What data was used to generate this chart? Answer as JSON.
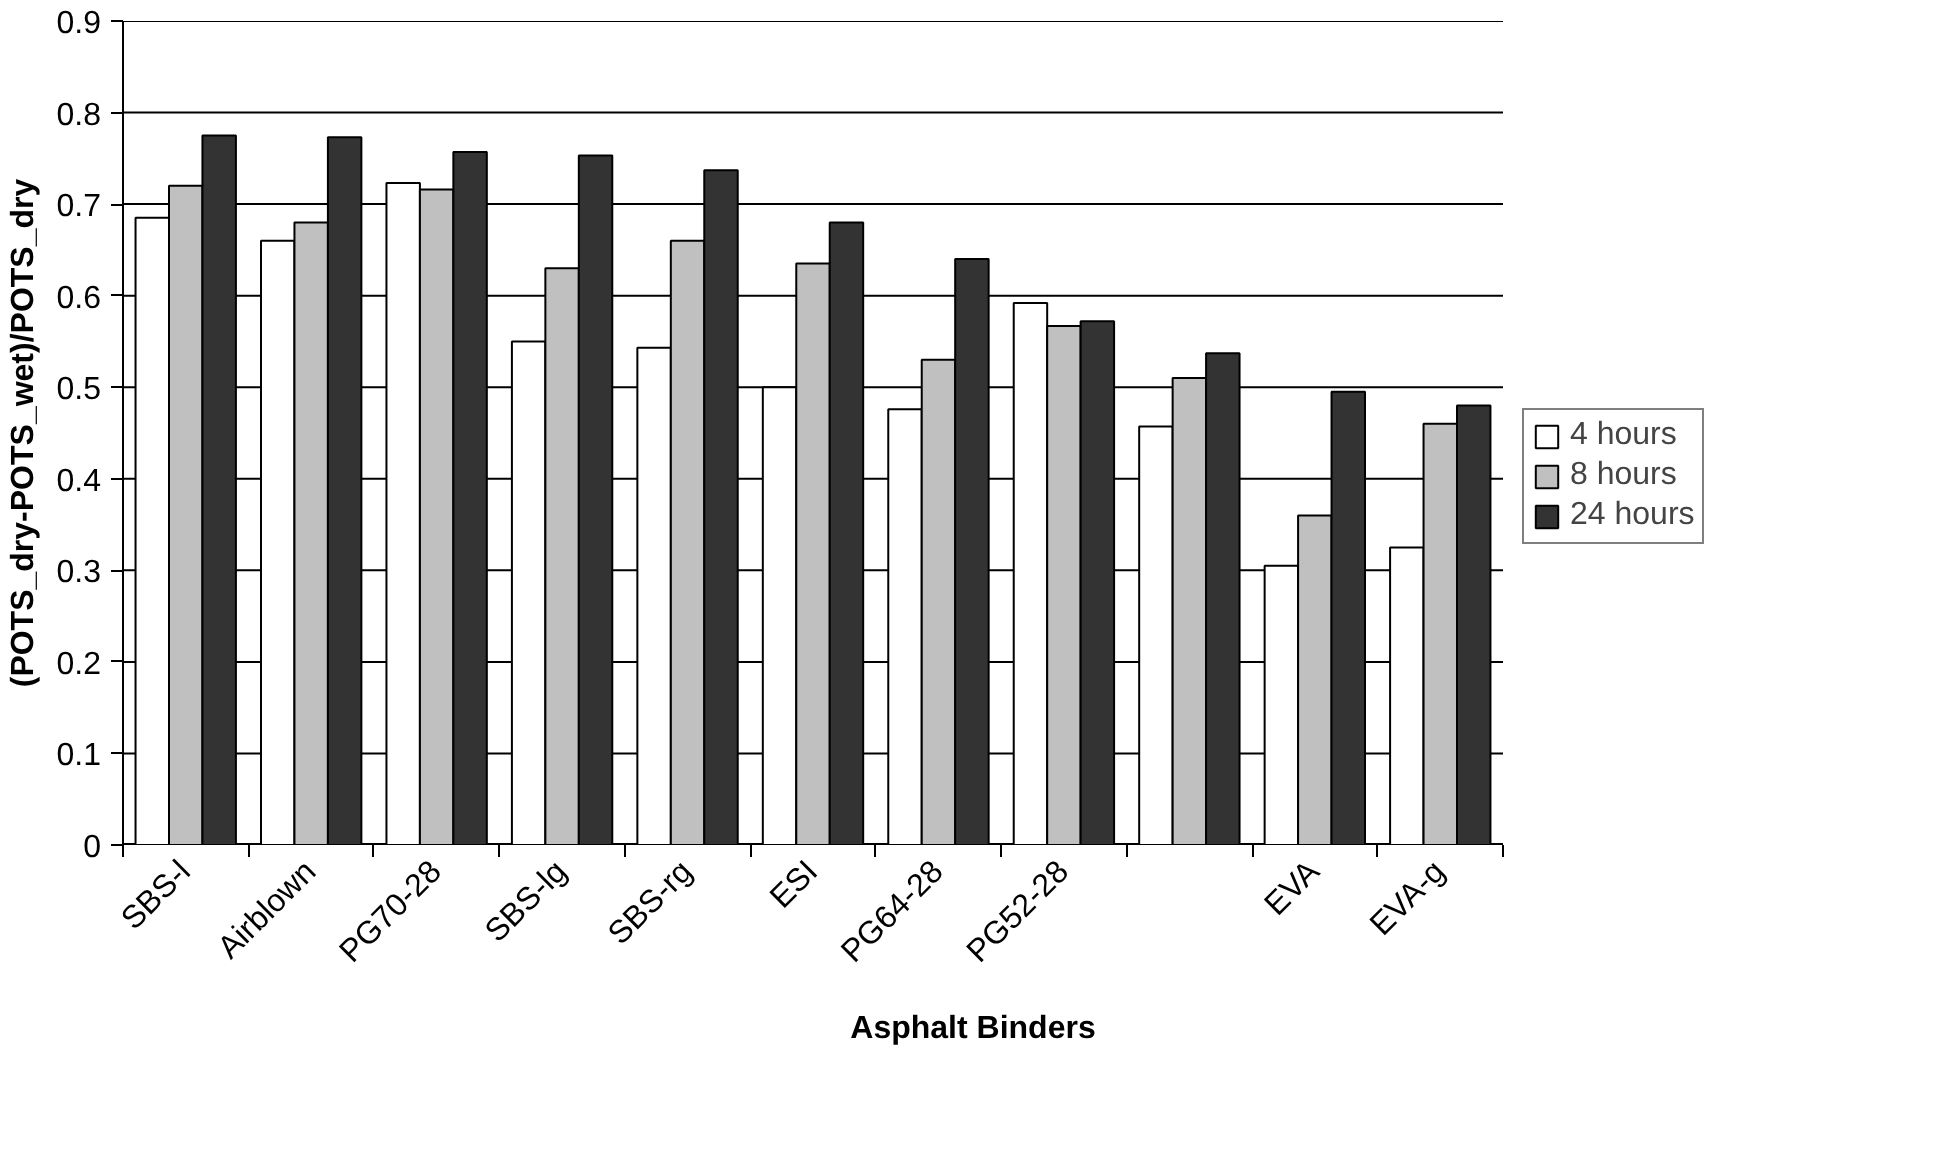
{
  "chart_data": {
    "type": "bar",
    "xlabel": "Asphalt Binders",
    "ylabel": "(POTS_dry-POTS_wet)/POTS_dry",
    "categories": [
      "SBS-l",
      "Airblown",
      "PG70-28",
      "SBS-lg",
      "SBS-rg",
      "ESI",
      "PG64-28",
      "PG52-28",
      null,
      "EVA",
      "EVA-g"
    ],
    "series": [
      {
        "name": "4 hours",
        "color": "#ffffff",
        "values": [
          0.685,
          0.66,
          0.723,
          0.55,
          0.543,
          0.5,
          0.476,
          0.592,
          0.457,
          0.305,
          0.325
        ]
      },
      {
        "name": "8 hours",
        "color": "#c0c0c0",
        "values": [
          0.72,
          0.68,
          0.716,
          0.63,
          0.66,
          0.635,
          0.53,
          0.567,
          0.51,
          0.36,
          0.46
        ]
      },
      {
        "name": "24 hours",
        "color": "#333333",
        "values": [
          0.775,
          0.773,
          0.757,
          0.753,
          0.737,
          0.68,
          0.64,
          0.572,
          0.537,
          0.495,
          0.48
        ]
      }
    ],
    "ylim": [
      0,
      0.9
    ],
    "yticks": [
      0,
      0.1,
      0.2,
      0.3,
      0.4,
      0.5,
      0.6,
      0.7,
      0.8,
      0.9
    ],
    "grid": "y",
    "legend": "right"
  }
}
